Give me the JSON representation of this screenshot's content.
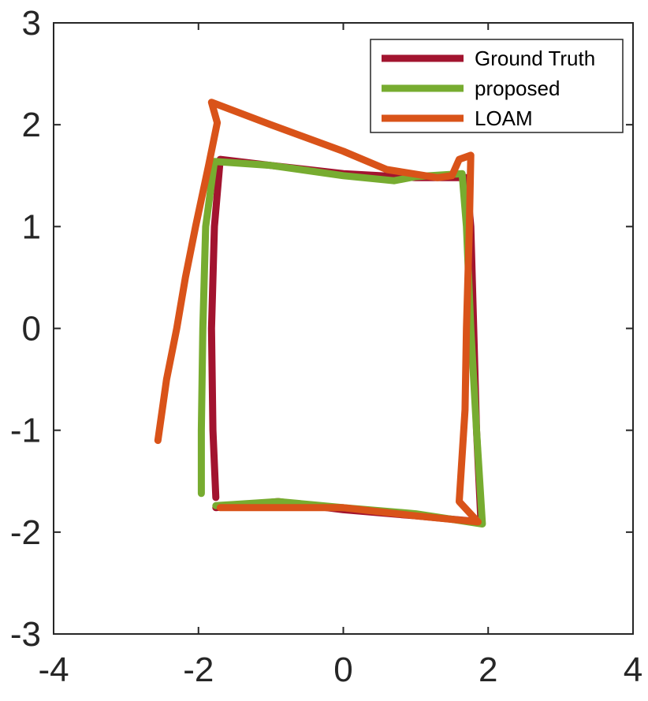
{
  "chart_data": {
    "type": "line",
    "title": "",
    "xlabel": "",
    "ylabel": "",
    "xlim": [
      -4,
      4
    ],
    "ylim": [
      -3,
      3
    ],
    "xticks": [
      -4,
      -2,
      0,
      2,
      4
    ],
    "yticks": [
      -3,
      -2,
      -1,
      0,
      1,
      2,
      3
    ],
    "x_tick_labels": [
      "-4",
      "-2",
      "0",
      "2",
      "4"
    ],
    "y_tick_labels": [
      "-3",
      "-2",
      "-1",
      "0",
      "1",
      "2",
      "3"
    ],
    "grid": false,
    "legend_position": "top-right",
    "series": [
      {
        "name": "Ground Truth",
        "color": "#a2142f",
        "points": [
          [
            -1.76,
            -1.66
          ],
          [
            -1.8,
            -1.0
          ],
          [
            -1.82,
            0.0
          ],
          [
            -1.78,
            1.0
          ],
          [
            -1.7,
            1.66
          ],
          [
            -1.0,
            1.6
          ],
          [
            0.0,
            1.52
          ],
          [
            1.0,
            1.48
          ],
          [
            1.7,
            1.48
          ],
          [
            1.76,
            1.0
          ],
          [
            1.8,
            0.0
          ],
          [
            1.84,
            -1.0
          ],
          [
            1.9,
            -1.9
          ],
          [
            1.0,
            -1.84
          ],
          [
            0.0,
            -1.78
          ],
          [
            -0.9,
            -1.7
          ],
          [
            -1.76,
            -1.76
          ]
        ]
      },
      {
        "name": "proposed",
        "color": "#77ac30",
        "points": [
          [
            -1.96,
            -1.62
          ],
          [
            -1.96,
            -1.0
          ],
          [
            -1.94,
            0.0
          ],
          [
            -1.9,
            1.0
          ],
          [
            -1.78,
            1.64
          ],
          [
            -1.0,
            1.6
          ],
          [
            0.0,
            1.5
          ],
          [
            0.7,
            1.45
          ],
          [
            1.0,
            1.49
          ],
          [
            1.64,
            1.52
          ],
          [
            1.7,
            1.0
          ],
          [
            1.76,
            0.0
          ],
          [
            1.84,
            -1.0
          ],
          [
            1.92,
            -1.92
          ],
          [
            1.0,
            -1.82
          ],
          [
            0.0,
            -1.76
          ],
          [
            -0.9,
            -1.7
          ],
          [
            -1.76,
            -1.74
          ]
        ]
      },
      {
        "name": "LOAM",
        "color": "#d95319",
        "points": [
          [
            -2.56,
            -1.1
          ],
          [
            -2.44,
            -0.5
          ],
          [
            -2.3,
            0.0
          ],
          [
            -2.18,
            0.5
          ],
          [
            -2.04,
            1.0
          ],
          [
            -1.86,
            1.6
          ],
          [
            -1.74,
            2.02
          ],
          [
            -1.82,
            2.22
          ],
          [
            -1.0,
            2.0
          ],
          [
            0.0,
            1.74
          ],
          [
            0.6,
            1.56
          ],
          [
            1.3,
            1.48
          ],
          [
            1.5,
            1.5
          ],
          [
            1.6,
            1.66
          ],
          [
            1.76,
            1.7
          ],
          [
            1.74,
            1.0
          ],
          [
            1.7,
            0.0
          ],
          [
            1.68,
            -0.8
          ],
          [
            1.6,
            -1.7
          ],
          [
            1.86,
            -1.9
          ],
          [
            1.0,
            -1.84
          ],
          [
            0.0,
            -1.76
          ],
          [
            -1.0,
            -1.76
          ],
          [
            -1.7,
            -1.76
          ]
        ]
      }
    ]
  }
}
